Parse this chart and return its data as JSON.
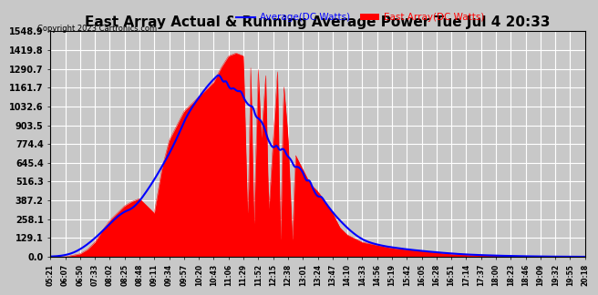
{
  "title": "East Array Actual & Running Average Power Tue Jul 4 20:33",
  "copyright": "Copyright 2023 Cartronics.com",
  "legend_avg": "Average(DC Watts)",
  "legend_east": "East Array(DC Watts)",
  "ylim": [
    0,
    1548.9
  ],
  "yticks": [
    0.0,
    129.1,
    258.1,
    387.2,
    516.3,
    645.4,
    774.4,
    903.5,
    1032.6,
    1161.7,
    1290.7,
    1419.8,
    1548.9
  ],
  "xtick_labels": [
    "05:21",
    "06:07",
    "06:50",
    "07:33",
    "08:02",
    "08:25",
    "08:48",
    "09:11",
    "09:34",
    "09:57",
    "10:20",
    "10:43",
    "11:06",
    "11:29",
    "11:52",
    "12:15",
    "12:38",
    "13:01",
    "13:24",
    "13:47",
    "14:10",
    "14:33",
    "14:56",
    "15:19",
    "15:42",
    "16:05",
    "16:28",
    "16:51",
    "17:14",
    "17:37",
    "18:00",
    "18:23",
    "18:46",
    "19:09",
    "19:32",
    "19:55",
    "20:18"
  ],
  "bg_color": "#c8c8c8",
  "plot_bg_color": "#c8c8c8",
  "grid_color": "#ffffff",
  "east_color": "#ff0000",
  "avg_color": "#0000ff",
  "title_color": "#000000",
  "copyright_color": "#000000"
}
